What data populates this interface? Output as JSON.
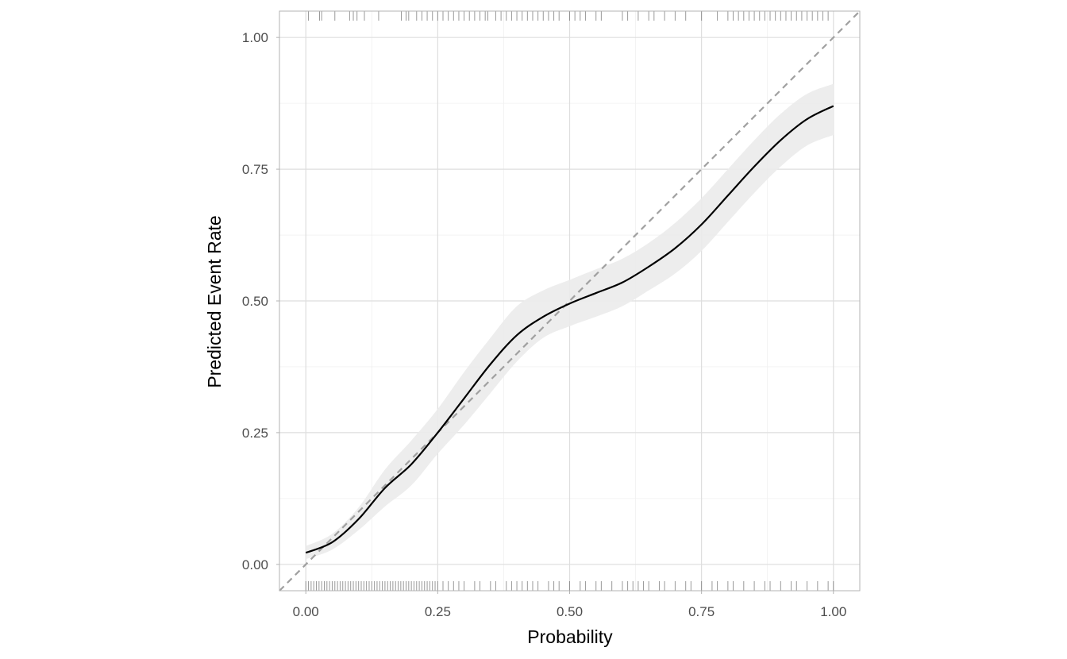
{
  "chart_data": {
    "type": "line",
    "title": "",
    "xlabel": "Probability",
    "ylabel": "Predicted Event Rate",
    "xlim": [
      -0.05,
      1.05
    ],
    "ylim": [
      -0.05,
      1.05
    ],
    "x_ticks": [
      "0.00",
      "0.25",
      "0.50",
      "0.75",
      "1.00"
    ],
    "y_ticks": [
      "0.00",
      "0.25",
      "0.50",
      "0.75",
      "1.00"
    ],
    "grid": true,
    "legend": "none",
    "reference_line": {
      "style": "dashed",
      "color": "#a0a0a0",
      "from": [
        0,
        0
      ],
      "to": [
        1.05,
        1.05
      ]
    },
    "smooth_curve": {
      "color": "#000000",
      "x": [
        0.0,
        0.05,
        0.1,
        0.15,
        0.2,
        0.25,
        0.3,
        0.35,
        0.4,
        0.45,
        0.5,
        0.55,
        0.6,
        0.65,
        0.7,
        0.75,
        0.8,
        0.85,
        0.9,
        0.95,
        1.0
      ],
      "y": [
        0.022,
        0.042,
        0.086,
        0.145,
        0.19,
        0.25,
        0.315,
        0.38,
        0.435,
        0.47,
        0.495,
        0.515,
        0.535,
        0.565,
        0.6,
        0.645,
        0.7,
        0.755,
        0.805,
        0.845,
        0.87
      ],
      "lower": [
        0.01,
        0.028,
        0.065,
        0.11,
        0.15,
        0.21,
        0.265,
        0.325,
        0.385,
        0.43,
        0.452,
        0.47,
        0.49,
        0.52,
        0.552,
        0.595,
        0.65,
        0.705,
        0.755,
        0.795,
        0.815
      ],
      "upper": [
        0.035,
        0.058,
        0.108,
        0.18,
        0.235,
        0.295,
        0.365,
        0.43,
        0.49,
        0.52,
        0.54,
        0.56,
        0.58,
        0.61,
        0.648,
        0.695,
        0.75,
        0.805,
        0.855,
        0.893,
        0.912
      ],
      "band_color": "#ebebeb"
    },
    "rug_top": [
      0.005,
      0.026,
      0.03,
      0.055,
      0.083,
      0.09,
      0.097,
      0.111,
      0.138,
      0.181,
      0.19,
      0.195,
      0.21,
      0.22,
      0.23,
      0.24,
      0.25,
      0.26,
      0.27,
      0.28,
      0.29,
      0.3,
      0.31,
      0.32,
      0.33,
      0.34,
      0.345,
      0.36,
      0.37,
      0.38,
      0.39,
      0.4,
      0.41,
      0.42,
      0.43,
      0.44,
      0.45,
      0.46,
      0.47,
      0.48,
      0.5,
      0.51,
      0.52,
      0.53,
      0.55,
      0.56,
      0.6,
      0.61,
      0.63,
      0.65,
      0.66,
      0.68,
      0.7,
      0.72,
      0.75,
      0.78,
      0.8,
      0.81,
      0.82,
      0.83,
      0.84,
      0.85,
      0.86,
      0.87,
      0.88,
      0.89,
      0.9,
      0.91,
      0.92,
      0.93,
      0.94,
      0.95,
      0.96,
      0.97,
      0.98,
      0.99
    ],
    "rug_bottom": [
      0.0,
      0.005,
      0.01,
      0.015,
      0.02,
      0.025,
      0.03,
      0.035,
      0.04,
      0.045,
      0.05,
      0.055,
      0.06,
      0.065,
      0.07,
      0.075,
      0.08,
      0.085,
      0.09,
      0.095,
      0.1,
      0.105,
      0.11,
      0.115,
      0.12,
      0.125,
      0.13,
      0.135,
      0.14,
      0.145,
      0.15,
      0.155,
      0.16,
      0.165,
      0.17,
      0.175,
      0.18,
      0.185,
      0.19,
      0.195,
      0.2,
      0.205,
      0.21,
      0.215,
      0.22,
      0.225,
      0.23,
      0.235,
      0.24,
      0.245,
      0.25,
      0.26,
      0.27,
      0.28,
      0.29,
      0.3,
      0.32,
      0.33,
      0.35,
      0.36,
      0.38,
      0.39,
      0.4,
      0.41,
      0.42,
      0.43,
      0.44,
      0.46,
      0.47,
      0.48,
      0.5,
      0.52,
      0.53,
      0.55,
      0.56,
      0.58,
      0.6,
      0.61,
      0.62,
      0.63,
      0.64,
      0.65,
      0.67,
      0.68,
      0.7,
      0.72,
      0.73,
      0.75,
      0.77,
      0.78,
      0.8,
      0.81,
      0.83,
      0.85,
      0.87,
      0.88,
      0.9,
      0.92,
      0.93,
      0.95,
      0.97,
      0.99,
      1.0
    ],
    "rug_color": "#808080"
  }
}
